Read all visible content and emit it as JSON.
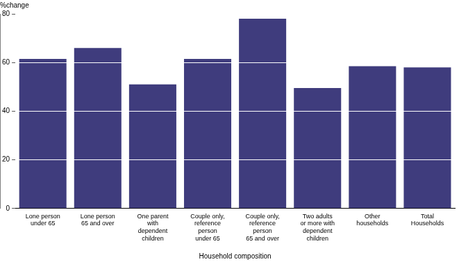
{
  "chart_data": {
    "type": "bar",
    "y_label": "%change",
    "x_label": "Household composition",
    "categories": [
      "Lone person\nunder 65",
      "Lone person\n65 and over",
      "One parent\nwith\ndependent\nchildren",
      "Couple only,\nreference\nperson\nunder 65",
      "Couple only,\nreference\nperson\n65 and over",
      "Two adults\nor more with\ndependent\nchildren",
      "Other\nhouseholds",
      "Total\nHouseholds"
    ],
    "values": [
      61.5,
      66,
      51,
      61.5,
      78,
      49.5,
      58.5,
      58
    ],
    "color": "#3f3c7d",
    "ylim": [
      0,
      80
    ],
    "yticks": [
      0,
      20,
      40,
      60,
      80
    ],
    "grid": true
  }
}
